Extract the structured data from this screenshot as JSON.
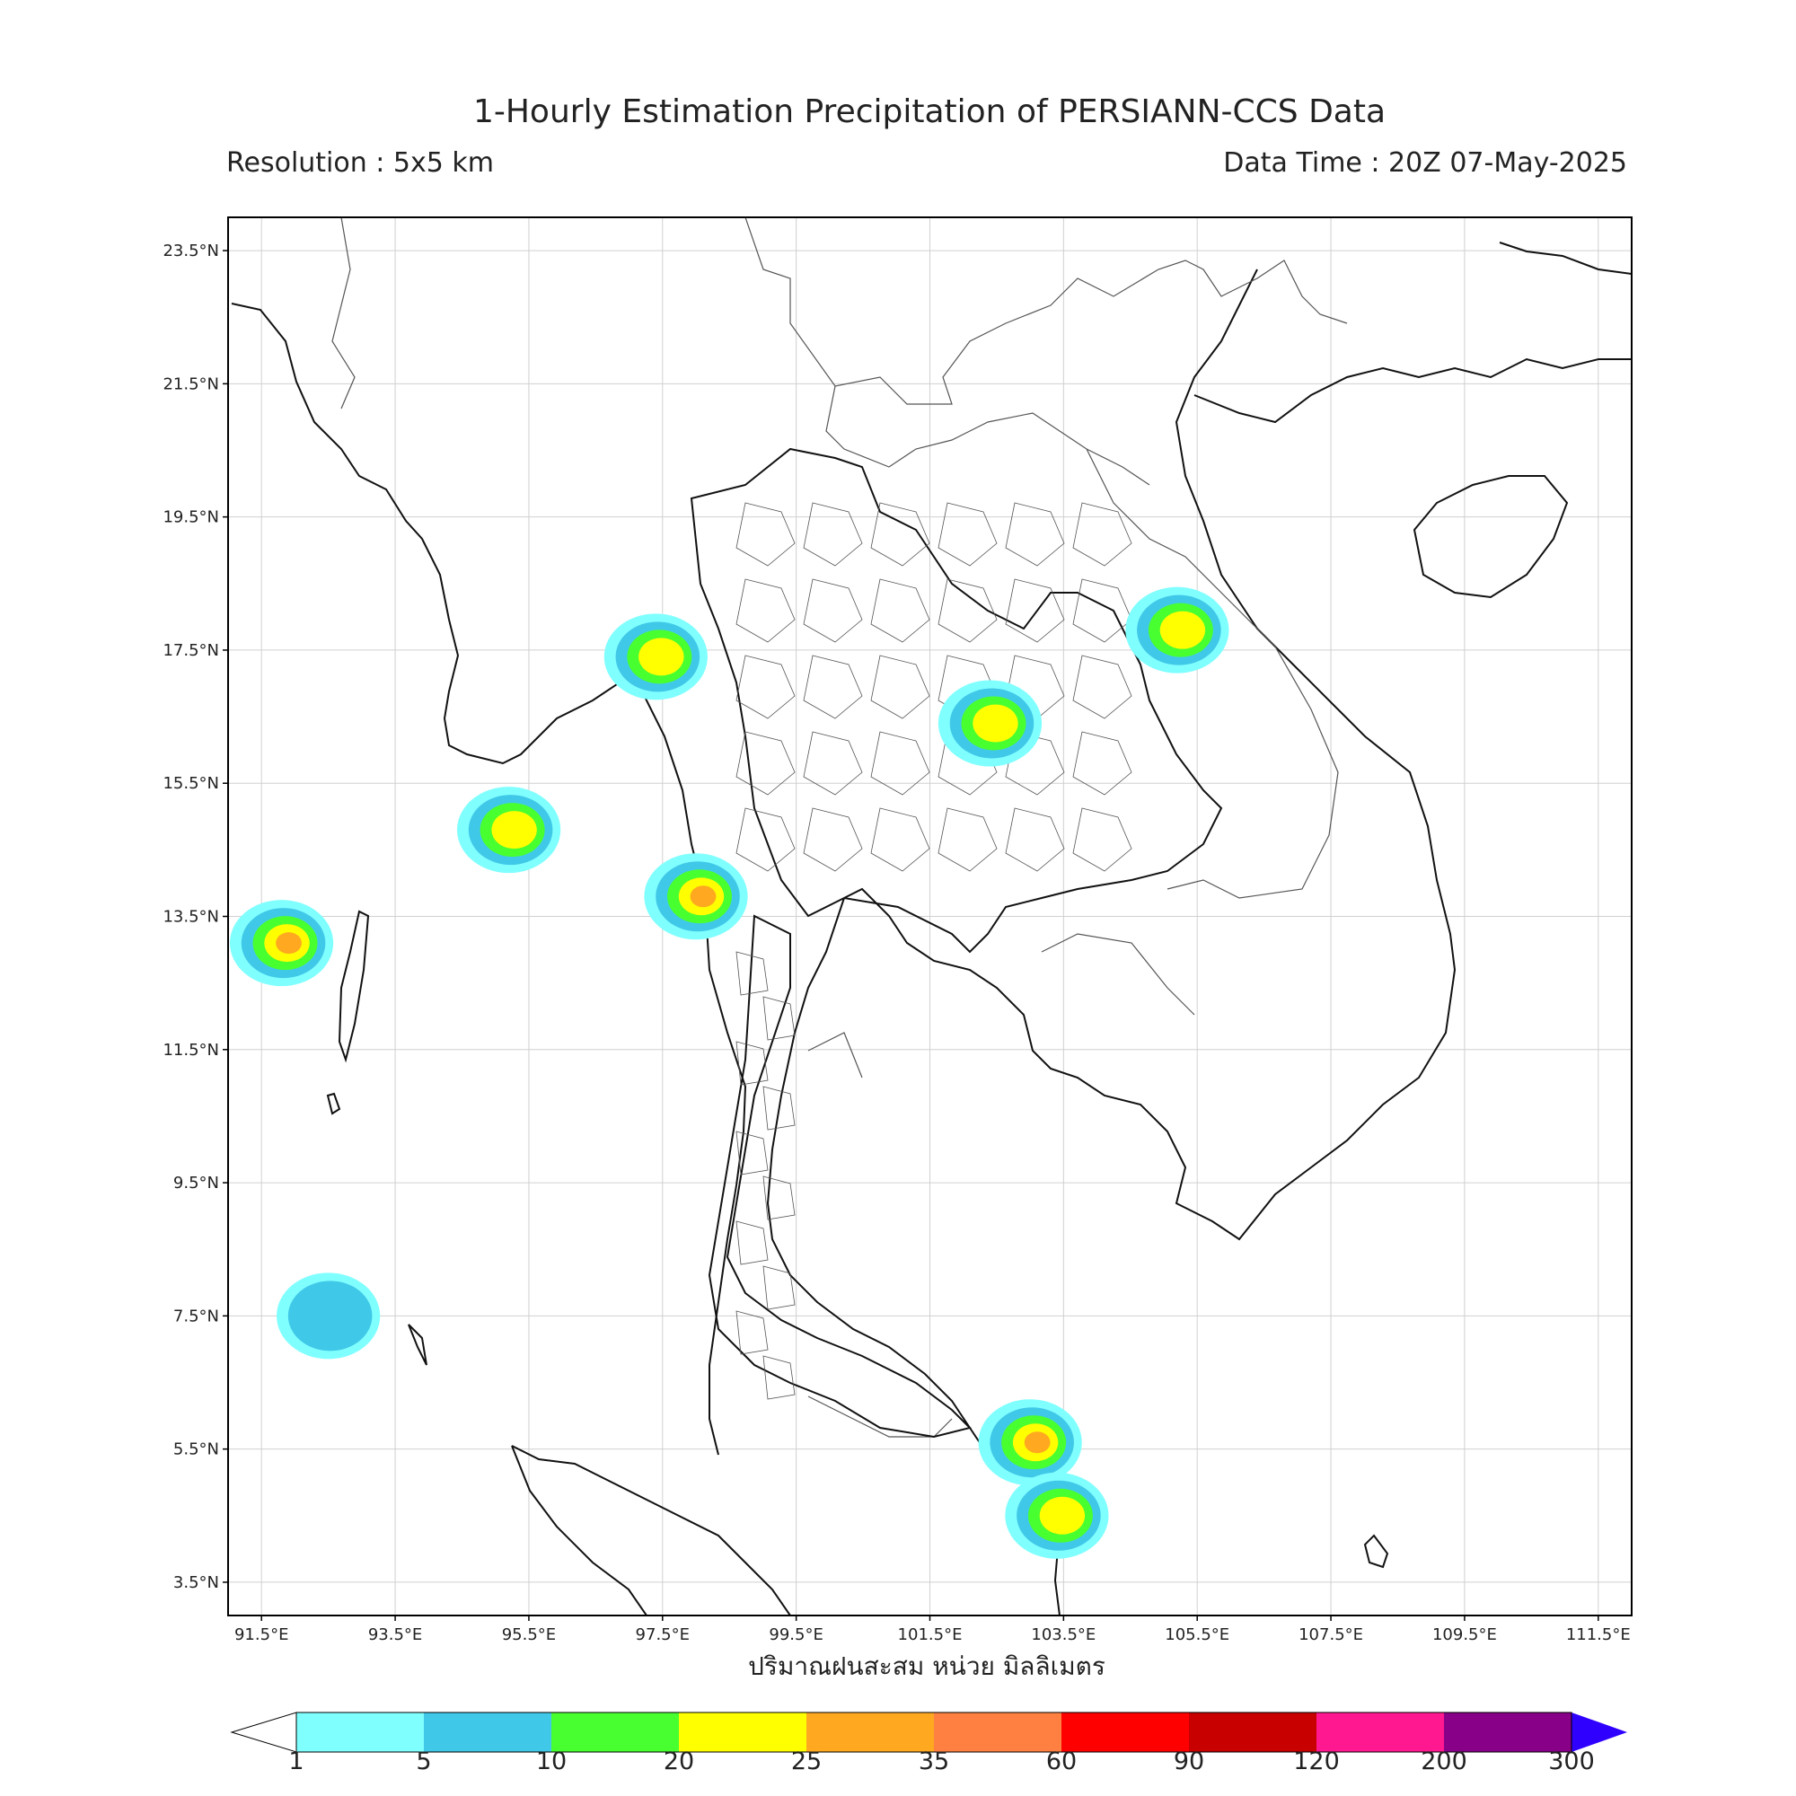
{
  "header": {
    "title": "1-Hourly Estimation Precipitation of PERSIANN-CCS Data",
    "resolution": "Resolution : 5x5 km",
    "data_time": "Data Time : 20Z 07-May-2025"
  },
  "map": {
    "lat_labels": [
      "23.5°N",
      "21.5°N",
      "19.5°N",
      "17.5°N",
      "15.5°N",
      "13.5°N",
      "11.5°N",
      "9.5°N",
      "7.5°N",
      "5.5°N",
      "3.5°N"
    ],
    "lon_labels": [
      "91.5°E",
      "93.5°E",
      "95.5°E",
      "97.5°E",
      "99.5°E",
      "101.5°E",
      "103.5°E",
      "105.5°E",
      "107.5°E",
      "109.5°E",
      "111.5°E"
    ],
    "extent": {
      "lon_min": 91,
      "lon_max": 112,
      "lat_min": 3,
      "lat_max": 24
    },
    "rain_cells": [
      {
        "lon": 98.0,
        "lat": 13.8,
        "value": 25
      },
      {
        "lon": 103.0,
        "lat": 5.6,
        "value": 35
      },
      {
        "lon": 103.4,
        "lat": 4.5,
        "value": 20
      },
      {
        "lon": 105.2,
        "lat": 17.8,
        "value": 20
      },
      {
        "lon": 102.4,
        "lat": 16.4,
        "value": 20
      },
      {
        "lon": 92.5,
        "lat": 7.5,
        "value": 5
      },
      {
        "lon": 95.2,
        "lat": 14.8,
        "value": 20
      },
      {
        "lon": 97.4,
        "lat": 17.4,
        "value": 20
      },
      {
        "lon": 91.8,
        "lat": 13.1,
        "value": 25
      }
    ]
  },
  "x_axis_label": "ปริมาณฝนสะสม หน่วย มิลลิเมตร",
  "colorbar": {
    "ticks": [
      "1",
      "5",
      "10",
      "20",
      "25",
      "35",
      "60",
      "90",
      "120",
      "200",
      "300"
    ],
    "colors": [
      "#80ffff",
      "#40c8e8",
      "#48ff30",
      "#ffff00",
      "#ffa820",
      "#ff8040",
      "#ff0000",
      "#c80000",
      "#ff1890",
      "#880088",
      "#3000ff"
    ]
  }
}
